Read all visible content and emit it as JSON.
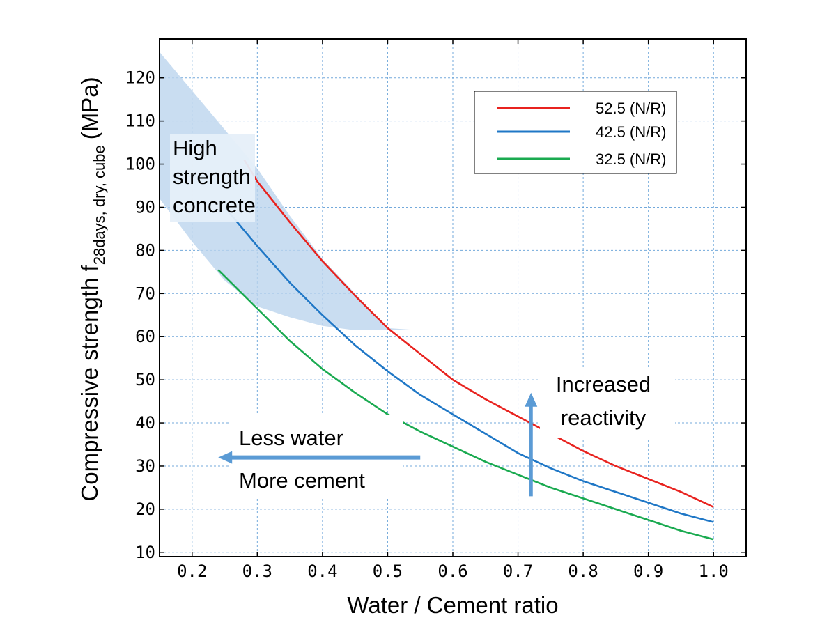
{
  "chart_data": {
    "type": "line",
    "xlabel": "Water / Cement ratio",
    "ylabel": {
      "main": "Compressive strength f",
      "subscript": "28days, dry, cube",
      "unit": "(MPa)"
    },
    "xlim": [
      0.15,
      1.05
    ],
    "ylim": [
      9,
      129
    ],
    "x_ticks": [
      0.2,
      0.3,
      0.4,
      0.5,
      0.6,
      0.7,
      0.8,
      0.9,
      1.0
    ],
    "x_tick_labels": [
      "0.2",
      "0.3",
      "0.4",
      "0.5",
      "0.6",
      "0.7",
      "0.8",
      "0.9",
      "1.0"
    ],
    "y_ticks": [
      10,
      20,
      30,
      40,
      50,
      60,
      70,
      80,
      90,
      100,
      110,
      120
    ],
    "y_tick_labels": [
      "10",
      "20",
      "30",
      "40",
      "50",
      "60",
      "70",
      "80",
      "90",
      "100",
      "110",
      "120"
    ],
    "grid": true,
    "legend_position": "top-right",
    "series": [
      {
        "name": "52.5 (N/R)",
        "color": "#e8231f",
        "x": [
          0.28,
          0.3,
          0.35,
          0.4,
          0.45,
          0.5,
          0.55,
          0.6,
          0.65,
          0.7,
          0.75,
          0.8,
          0.85,
          0.9,
          0.95,
          1.0
        ],
        "y": [
          101,
          96,
          86.5,
          77.5,
          69.5,
          62,
          56,
          50,
          45.5,
          41.5,
          37.5,
          33.5,
          30,
          27,
          24,
          20.5
        ]
      },
      {
        "name": "42.5 (N/R)",
        "color": "#1f77c6",
        "x": [
          0.25,
          0.3,
          0.35,
          0.4,
          0.45,
          0.5,
          0.55,
          0.6,
          0.65,
          0.7,
          0.75,
          0.8,
          0.85,
          0.9,
          0.95,
          1.0
        ],
        "y": [
          90,
          81,
          72.5,
          65,
          58,
          52,
          46.5,
          42,
          37.5,
          33,
          29.5,
          26.5,
          24,
          21.5,
          19,
          17
        ]
      },
      {
        "name": "32.5 (N/R)",
        "color": "#1aaa50",
        "x": [
          0.24,
          0.3,
          0.35,
          0.4,
          0.45,
          0.5,
          0.55,
          0.6,
          0.65,
          0.7,
          0.75,
          0.8,
          0.85,
          0.9,
          0.95,
          1.0
        ],
        "y": [
          75.5,
          66.5,
          59,
          52.5,
          47,
          42,
          38,
          34.5,
          31,
          28,
          25,
          22.5,
          20,
          17.5,
          15,
          13
        ]
      }
    ],
    "shaded_region": {
      "label": "High strength concrete",
      "color": "#bcd4ee",
      "polygon": [
        [
          0.15,
          126
        ],
        [
          0.2,
          117
        ],
        [
          0.25,
          108
        ],
        [
          0.3,
          99
        ],
        [
          0.35,
          88
        ],
        [
          0.4,
          78
        ],
        [
          0.45,
          70
        ],
        [
          0.5,
          62
        ],
        [
          0.55,
          61.5
        ],
        [
          0.5,
          61.5
        ],
        [
          0.45,
          61.5
        ],
        [
          0.4,
          62.5
        ],
        [
          0.35,
          64.5
        ],
        [
          0.3,
          67
        ],
        [
          0.25,
          73
        ],
        [
          0.2,
          82
        ],
        [
          0.15,
          92
        ]
      ]
    },
    "annotations": {
      "high_strength": [
        "High",
        "strength",
        "concrete"
      ],
      "less_water": "Less water",
      "more_cement": "More cement",
      "increased_reactivity": [
        "Increased",
        "reactivity"
      ]
    },
    "arrows": {
      "color": "#5b9bd5",
      "horizontal": {
        "from": [
          0.55,
          32
        ],
        "to": [
          0.24,
          32
        ]
      },
      "vertical": {
        "from": [
          0.72,
          23
        ],
        "to": [
          0.72,
          47
        ]
      }
    }
  }
}
